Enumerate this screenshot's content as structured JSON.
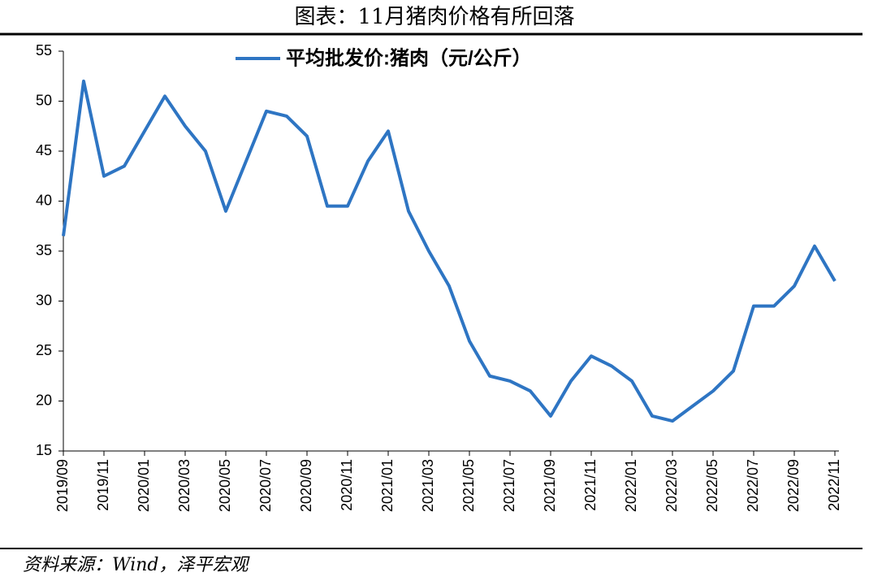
{
  "chart_data": {
    "type": "line",
    "title": "图表：11月猪肉价格有所回落",
    "source": "资料来源：Wind，泽平宏观",
    "categories": [
      "2019/09",
      "2019/10",
      "2019/11",
      "2019/12",
      "2020/01",
      "2020/02",
      "2020/03",
      "2020/04",
      "2020/05",
      "2020/06",
      "2020/07",
      "2020/08",
      "2020/09",
      "2020/10",
      "2020/11",
      "2020/12",
      "2021/01",
      "2021/02",
      "2021/03",
      "2021/04",
      "2021/05",
      "2021/06",
      "2021/07",
      "2021/08",
      "2021/09",
      "2021/10",
      "2021/11",
      "2021/12",
      "2022/01",
      "2022/02",
      "2022/03",
      "2022/04",
      "2022/05",
      "2022/06",
      "2022/07",
      "2022/08",
      "2022/09",
      "2022/10",
      "2022/11"
    ],
    "series": [
      {
        "name": "平均批发价:猪肉（元/公斤）",
        "color": "#2e75c3",
        "values": [
          36.5,
          52,
          42.5,
          43.5,
          47,
          50.5,
          47.5,
          45,
          39,
          44,
          49,
          48.5,
          46.5,
          39.5,
          39.5,
          44,
          47,
          39,
          35,
          31.5,
          26,
          22.5,
          22,
          21,
          18.5,
          22,
          24.5,
          23.5,
          22,
          18.5,
          18,
          19.5,
          21,
          23,
          29.5,
          29.5,
          31.5,
          35.5,
          32
        ]
      }
    ],
    "xticks": [
      "2019/09",
      "2019/11",
      "2020/01",
      "2020/03",
      "2020/05",
      "2020/07",
      "2020/09",
      "2020/11",
      "2021/01",
      "2021/03",
      "2021/05",
      "2021/07",
      "2021/09",
      "2021/11",
      "2022/01",
      "2022/03",
      "2022/05",
      "2022/07",
      "2022/09",
      "2022/11"
    ],
    "ylim": [
      15,
      55
    ],
    "yticks": [
      15,
      20,
      25,
      30,
      35,
      40,
      45,
      50,
      55
    ],
    "legend": "top"
  }
}
